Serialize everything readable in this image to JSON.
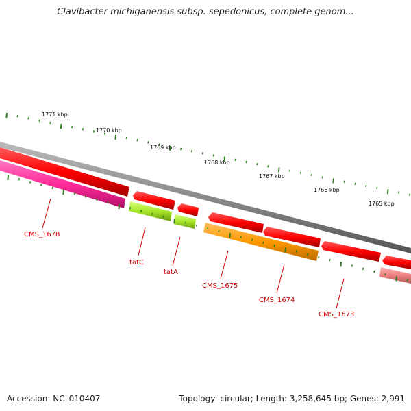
{
  "title": "Clavibacter michiganensis subsp. sepedonicus, complete genom...",
  "accession": "Accession: NC_010407",
  "summary": "Topology: circular; Length: 3,258,645 bp; Genes: 2,991",
  "colors": {
    "backbone": "#8c8c8c",
    "tick": "#2e7d1e",
    "label": "#cc0000",
    "cds_red": "#ff0000",
    "cds_pink": "#ff3399",
    "cds_yellowgreen": "#a6e629",
    "cds_orange": "#ff9900",
    "cds_lightred": "#ee8888"
  },
  "scale_labels": [
    "1771 kbp",
    "1770 kbp",
    "1769 kbp",
    "1768 kbp",
    "1767 kbp",
    "1766 kbp",
    "1765 kbp"
  ],
  "genes": [
    {
      "name": "CMS_1678",
      "color": "#ff3399",
      "strand": "minus"
    },
    {
      "name": "tatC",
      "color": "#a6e629",
      "strand": "minus"
    },
    {
      "name": "tatA",
      "color": "#a6e629",
      "strand": "minus"
    },
    {
      "name": "CMS_1675",
      "color": "#ff9900",
      "strand": "minus"
    },
    {
      "name": "CMS_1674",
      "color": "#ff0000",
      "strand": "plus"
    },
    {
      "name": "CMS_1673",
      "color": "#ee8888",
      "strand": "minus"
    }
  ]
}
